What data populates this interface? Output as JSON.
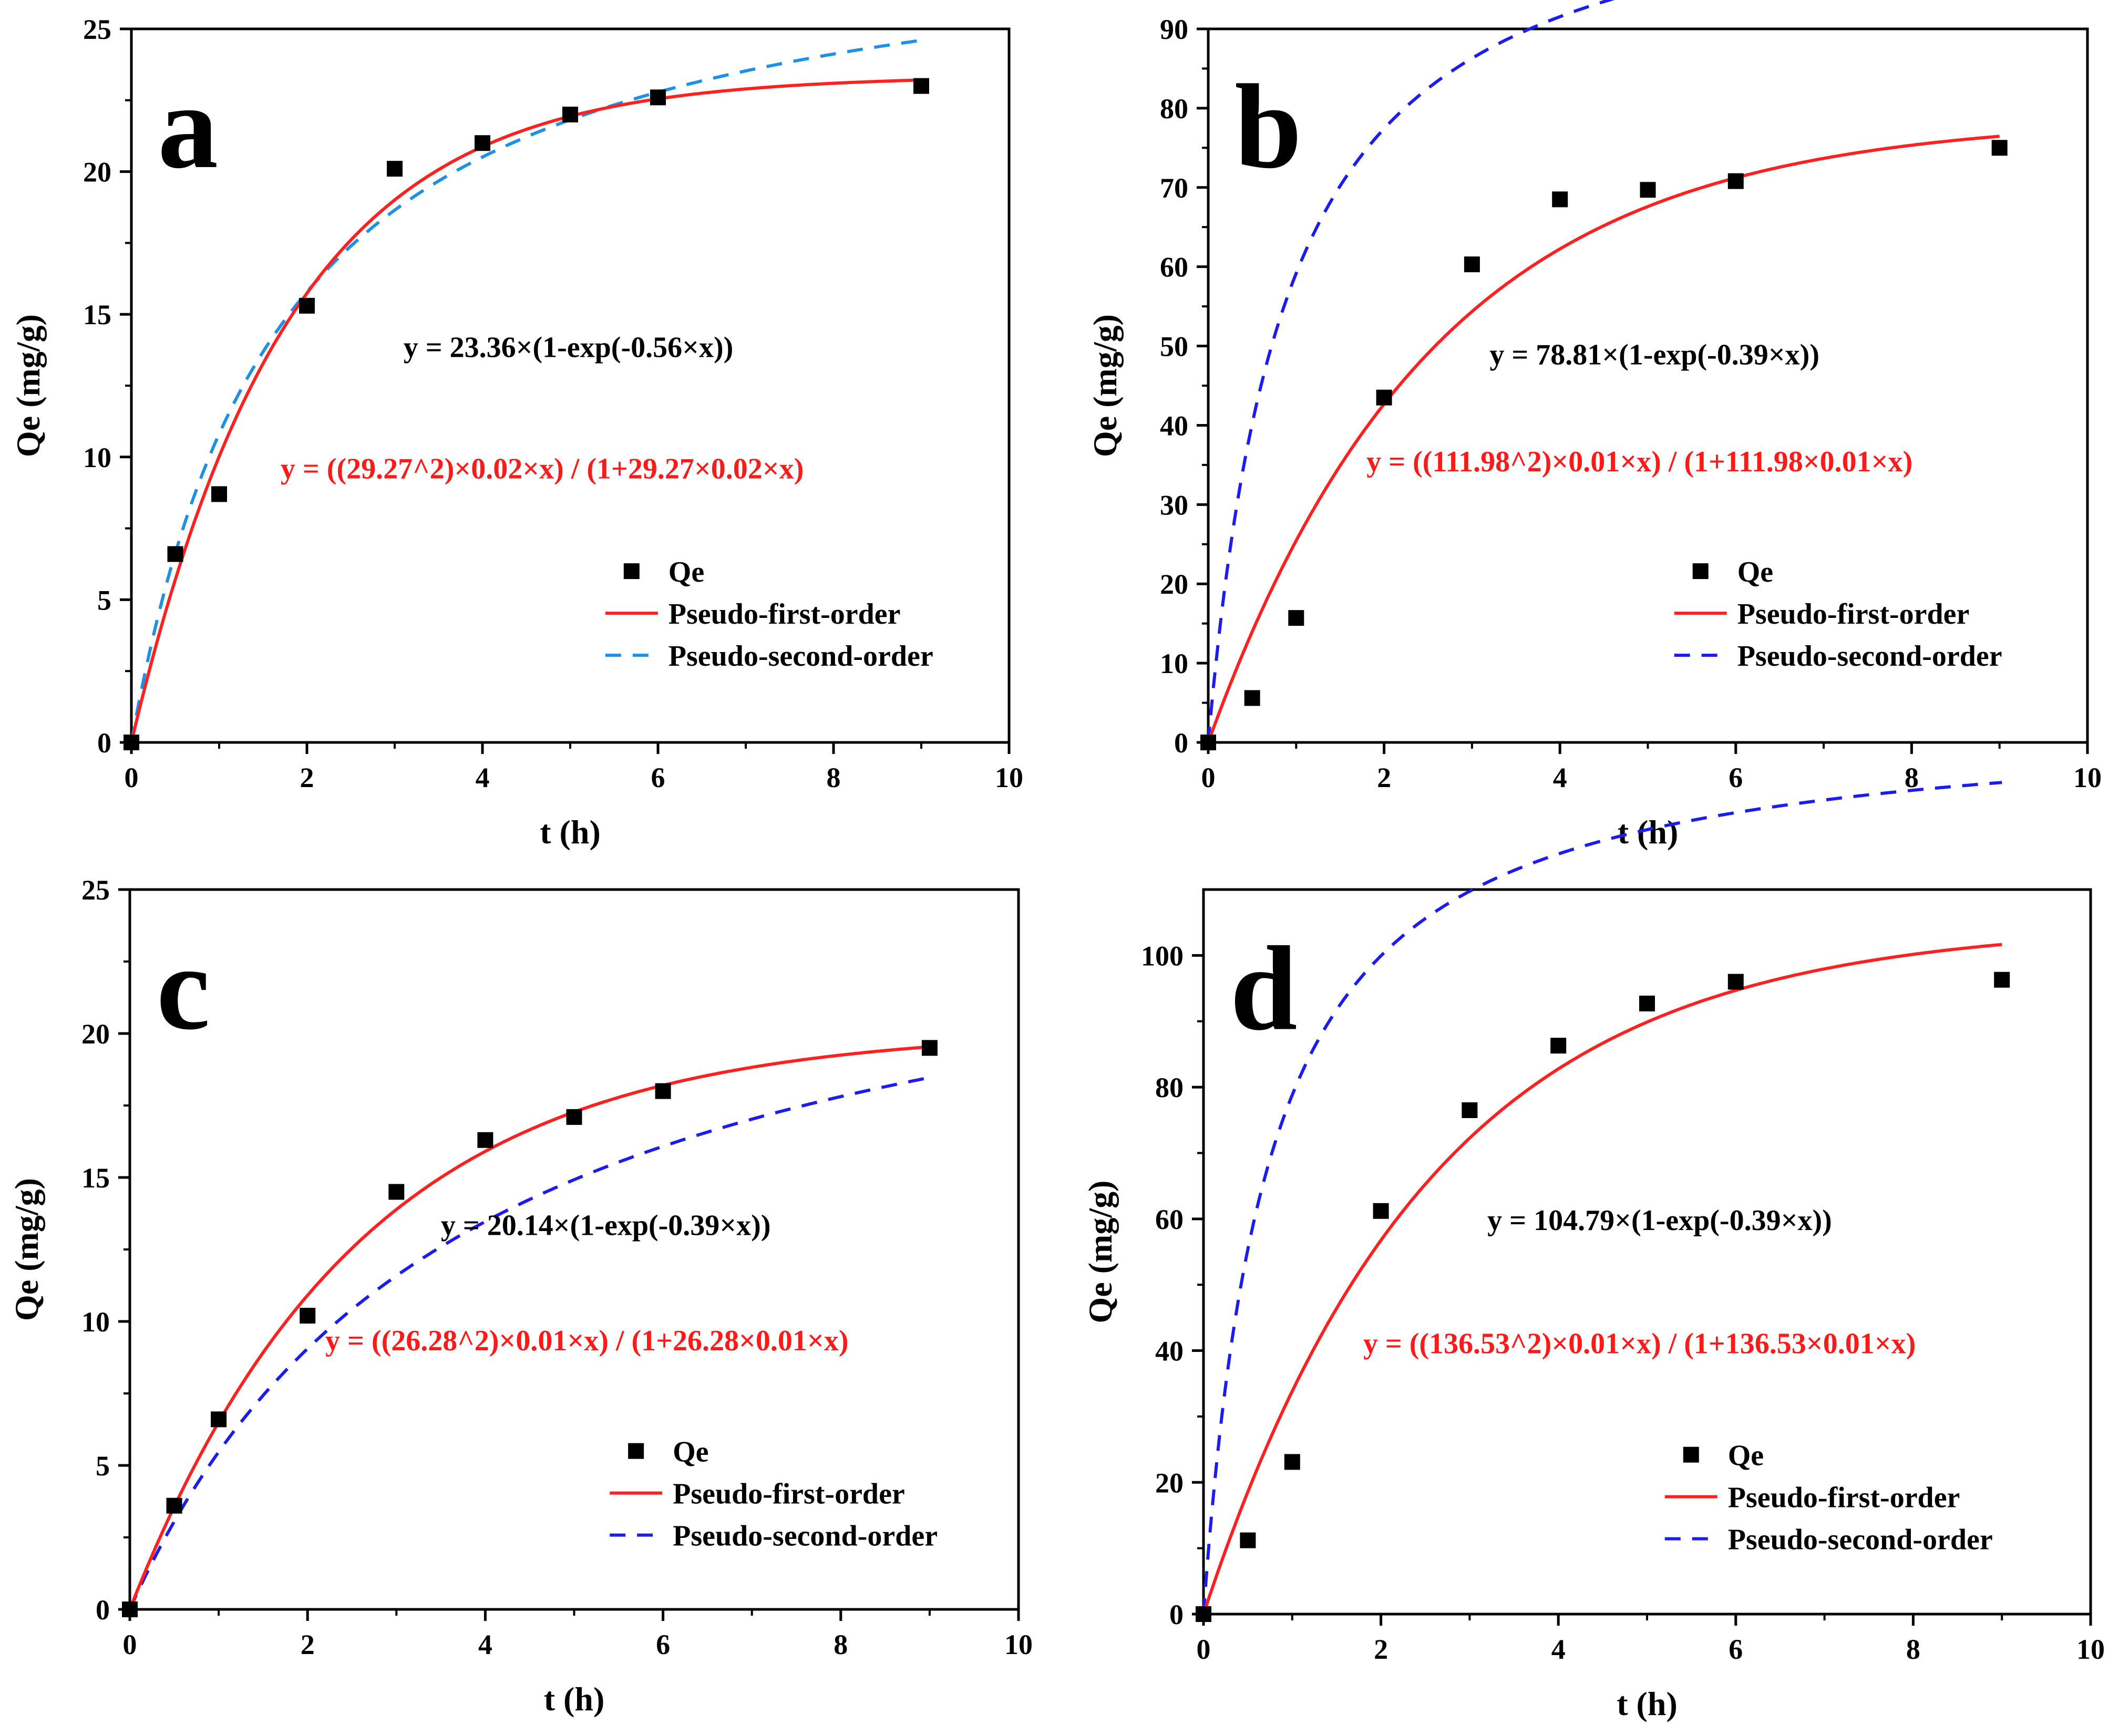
{
  "colors": {
    "first_order": "#ff2020",
    "second_order_a": "#1e90e6",
    "second_order_b": "#1c1cf0",
    "points": "#000000",
    "eq2_text": "#ff1a1a",
    "eq1_text": "#000000"
  },
  "chart_data": [
    {
      "type": "scatter",
      "panel": "a",
      "xlabel": "t (h)",
      "ylabel": "Qe (mg/g)",
      "xlim": [
        0,
        10
      ],
      "ylim": [
        0,
        25
      ],
      "xticks": [
        0,
        2,
        4,
        6,
        8,
        10
      ],
      "yticks": [
        0,
        5,
        10,
        15,
        20,
        25
      ],
      "x": [
        0,
        0.5,
        1,
        2,
        3,
        4,
        5,
        6,
        9
      ],
      "y": [
        0,
        6.6,
        8.7,
        15.3,
        20.1,
        21.0,
        22.0,
        22.6,
        23.0
      ],
      "pfo": {
        "qe": 23.36,
        "k": 0.56
      },
      "pso": {
        "qe": 29.27,
        "k": 0.02
      },
      "eq_first": "y = 23.36×(1-exp(-0.56×x))",
      "eq_second": "y = ((29.27^2)×0.02×x) / (1+29.27×0.02×x)",
      "second_color": "#1e90e6",
      "legend": [
        "Qe",
        "Pseudo-first-order",
        "Pseudo-second-order"
      ]
    },
    {
      "type": "scatter",
      "panel": "b",
      "xlabel": "t (h)",
      "ylabel": "Qe (mg/g)",
      "xlim": [
        0,
        10
      ],
      "ylim": [
        0,
        90
      ],
      "xticks": [
        0,
        2,
        4,
        6,
        8,
        10
      ],
      "yticks": [
        0,
        10,
        20,
        30,
        40,
        50,
        60,
        70,
        80,
        90
      ],
      "x": [
        0,
        0.5,
        1,
        2,
        3,
        4,
        5,
        6,
        9
      ],
      "y": [
        0,
        5.6,
        15.7,
        43.5,
        60.3,
        68.5,
        69.7,
        70.8,
        75.0
      ],
      "pfo": {
        "qe": 78.81,
        "k": 0.39
      },
      "pso": {
        "qe": 111.98,
        "k": 0.01
      },
      "eq_first": "y = 78.81×(1-exp(-0.39×x))",
      "eq_second": "y = ((111.98^2)×0.01×x) / (1+111.98×0.01×x)",
      "second_color": "#1c1cf0",
      "legend": [
        "Qe",
        "Pseudo-first-order",
        "Pseudo-second-order"
      ]
    },
    {
      "type": "scatter",
      "panel": "c",
      "xlabel": "t (h)",
      "ylabel": "Qe (mg/g)",
      "xlim": [
        0,
        10
      ],
      "ylim": [
        0,
        25
      ],
      "xticks": [
        0,
        2,
        4,
        6,
        8,
        10
      ],
      "yticks": [
        0,
        5,
        10,
        15,
        20,
        25
      ],
      "x": [
        0,
        0.5,
        1,
        2,
        3,
        4,
        5,
        6,
        9
      ],
      "y": [
        0,
        3.6,
        6.6,
        10.2,
        14.5,
        16.3,
        17.1,
        18.0,
        19.5
      ],
      "pfo": {
        "qe": 20.14,
        "k": 0.39
      },
      "pso": {
        "qe": 26.28,
        "k": 0.01
      },
      "eq_first": "y = 20.14×(1-exp(-0.39×x))",
      "eq_second": "y = ((26.28^2)×0.01×x) / (1+26.28×0.01×x)",
      "second_color": "#1c1cf0",
      "legend": [
        "Qe",
        "Pseudo-first-order",
        "Pseudo-second-order"
      ]
    },
    {
      "type": "scatter",
      "panel": "d",
      "xlabel": "t (h)",
      "ylabel": "Qe (mg/g)",
      "xlim": [
        0,
        10
      ],
      "ylim": [
        0,
        110
      ],
      "xticks": [
        0,
        2,
        4,
        6,
        8,
        10
      ],
      "yticks": [
        0,
        20,
        40,
        60,
        80,
        100
      ],
      "x": [
        0,
        0.5,
        1,
        2,
        3,
        4,
        5,
        6,
        9
      ],
      "y": [
        0,
        11.2,
        23.1,
        61.2,
        76.5,
        86.3,
        92.7,
        96.0,
        96.3
      ],
      "pfo": {
        "qe": 104.79,
        "k": 0.39
      },
      "pso": {
        "qe": 136.53,
        "k": 0.01
      },
      "eq_first": "y = 104.79×(1-exp(-0.39×x))",
      "eq_second": "y = ((136.53^2)×0.01×x) / (1+136.53×0.01×x)",
      "second_color": "#1c1cf0",
      "legend": [
        "Qe",
        "Pseudo-first-order",
        "Pseudo-second-order"
      ]
    }
  ]
}
